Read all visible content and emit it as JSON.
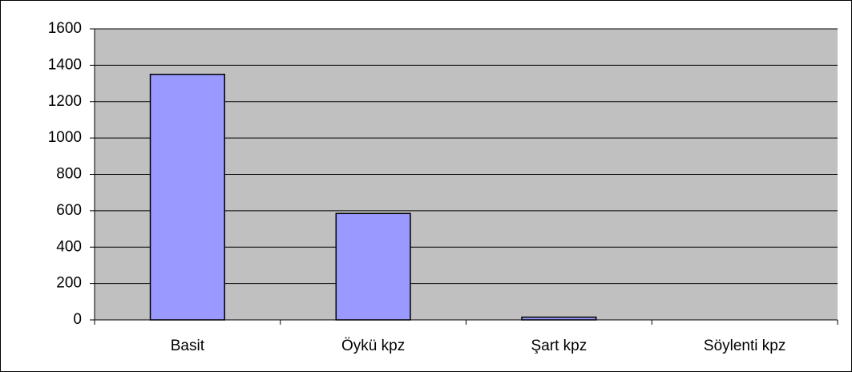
{
  "chart_data": {
    "type": "bar",
    "categories": [
      "Basit",
      "Öykü kpz",
      "Şart kpz",
      "Söylenti kpz"
    ],
    "values": [
      1350,
      585,
      15,
      0
    ],
    "color": "#9999ff",
    "ylim": [
      0,
      1600
    ],
    "yticks": [
      0,
      200,
      400,
      600,
      800,
      1000,
      1200,
      1400,
      1600
    ],
    "grid": true
  }
}
